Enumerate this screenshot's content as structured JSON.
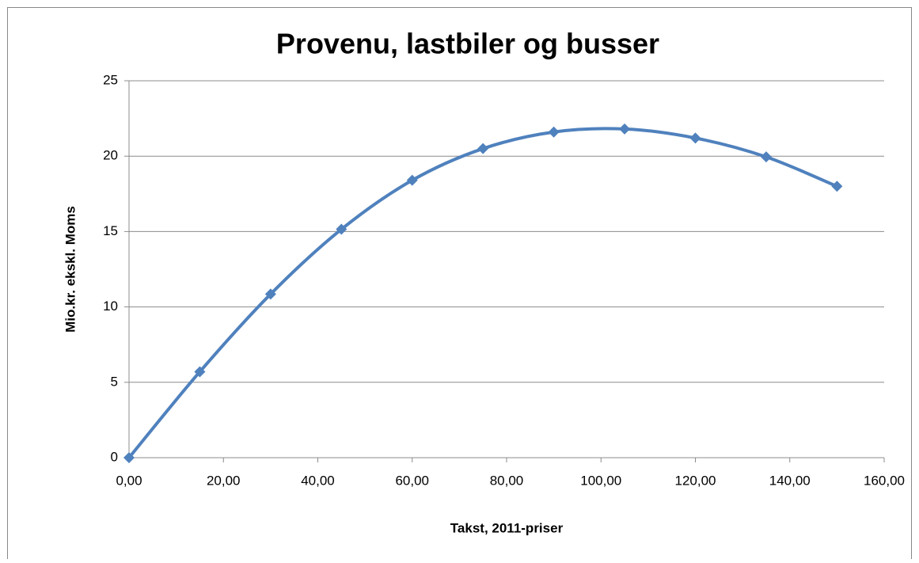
{
  "chart_data": {
    "type": "line",
    "title": "Provenu, lastbiler og busser",
    "x_label": "Takst, 2011-priser",
    "y_label": "Mio.kr. ekskl. Moms",
    "x": [
      0,
      15,
      30,
      45,
      60,
      75,
      90,
      105,
      120,
      135,
      150
    ],
    "series": [
      {
        "color": "#4f81bd",
        "values": [
          0,
          5.7,
          10.85,
          15.15,
          18.4,
          20.5,
          21.6,
          21.8,
          21.2,
          19.95,
          18.0
        ]
      }
    ],
    "xlim": [
      0,
      160
    ],
    "xticks": [
      {
        "value": 0,
        "label": "0,00"
      },
      {
        "value": 20,
        "label": "20,00"
      },
      {
        "value": 40,
        "label": "40,00"
      },
      {
        "value": 60,
        "label": "60,00"
      },
      {
        "value": 80,
        "label": "80,00"
      },
      {
        "value": 100,
        "label": "100,00"
      },
      {
        "value": 120,
        "label": "120,00"
      },
      {
        "value": 140,
        "label": "140,00"
      },
      {
        "value": 160,
        "label": "160,00"
      }
    ],
    "ylim": [
      0,
      25
    ],
    "yticks": [
      0,
      5,
      10,
      15,
      20,
      25
    ],
    "grid": true,
    "smooth": true,
    "marker": "diamond"
  }
}
